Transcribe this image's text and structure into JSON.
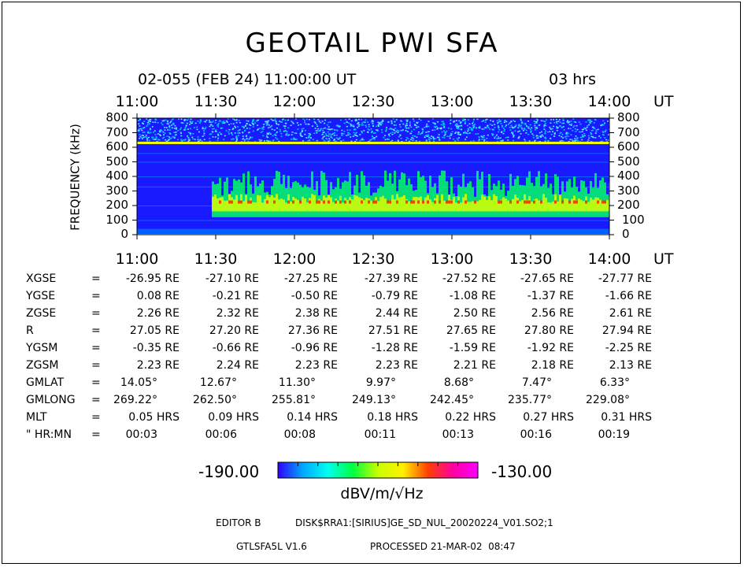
{
  "title": "GEOTAIL PWI SFA",
  "subtitle": "02-055 (FEB 24) 11:00:00 UT",
  "duration": "03 hrs",
  "chart_data": {
    "type": "heatmap",
    "x_tick_labels": [
      "11:00",
      "11:30",
      "12:00",
      "12:30",
      "13:00",
      "13:30",
      "14:00"
    ],
    "x_unit": "UT",
    "xlim": [
      "11:00",
      "14:00"
    ],
    "ylabel": "FREQUENCY (kHz)",
    "y_ticks": [
      0,
      100,
      200,
      300,
      400,
      500,
      600,
      700,
      800
    ],
    "ylim": [
      0,
      800
    ],
    "colorbar": {
      "min": "-190.00",
      "max": "-130.00",
      "unit": "dBV/m/√Hz",
      "colors": [
        "#3000ff",
        "#00a8ff",
        "#00ffee",
        "#00ff40",
        "#c8ff00",
        "#fff000",
        "#ff4000",
        "#ff00a0",
        "#ff00ff"
      ]
    },
    "features": [
      {
        "name": "narrowband line",
        "frequency_khz": 630,
        "time": "11:00-14:00"
      },
      {
        "name": "broadband emission",
        "frequency_khz_range": [
          120,
          450
        ],
        "time": "11:30-14:00",
        "peak_frequency_khz": 220
      }
    ]
  },
  "orbit_table": {
    "rows": [
      {
        "label": "XGSE",
        "eq": "=",
        "values": [
          "-26.95 RE",
          "-27.10 RE",
          "-27.25 RE",
          "-27.39 RE",
          "-27.52 RE",
          "-27.65 RE",
          "-27.77 RE"
        ]
      },
      {
        "label": "YGSE",
        "eq": "=",
        "values": [
          "0.08 RE",
          "-0.21 RE",
          "-0.50 RE",
          "-0.79 RE",
          "-1.08 RE",
          "-1.37 RE",
          "-1.66 RE"
        ]
      },
      {
        "label": "ZGSE",
        "eq": "=",
        "values": [
          "2.26 RE",
          "2.32 RE",
          "2.38 RE",
          "2.44 RE",
          "2.50 RE",
          "2.56 RE",
          "2.61 RE"
        ]
      },
      {
        "label": "R",
        "eq": "=",
        "values": [
          "27.05 RE",
          "27.20 RE",
          "27.36 RE",
          "27.51 RE",
          "27.65 RE",
          "27.80 RE",
          "27.94 RE"
        ]
      },
      {
        "label": "YGSM",
        "eq": "=",
        "values": [
          "-0.35 RE",
          "-0.66 RE",
          "-0.96 RE",
          "-1.28 RE",
          "-1.59 RE",
          "-1.92 RE",
          "-2.25 RE"
        ]
      },
      {
        "label": "ZGSM",
        "eq": "=",
        "values": [
          "2.23 RE",
          "2.24 RE",
          "2.23 RE",
          "2.23 RE",
          "2.21 RE",
          "2.18 RE",
          "2.13 RE"
        ]
      },
      {
        "label": "GMLAT",
        "eq": "=",
        "values": [
          "14.05°",
          "12.67°",
          "11.30°",
          "9.97°",
          "8.68°",
          "7.47°",
          "6.33°"
        ]
      },
      {
        "label": "GMLONG",
        "eq": "=",
        "values": [
          "269.22°",
          "262.50°",
          "255.81°",
          "249.13°",
          "242.45°",
          "235.77°",
          "229.08°"
        ]
      },
      {
        "label": "MLT",
        "eq": "=",
        "values": [
          "0.05 HRS",
          "0.09 HRS",
          "0.14 HRS",
          "0.18 HRS",
          "0.22 HRS",
          "0.27 HRS",
          "0.31 HRS"
        ]
      },
      {
        "label": "\" HR:MN",
        "eq": "=",
        "values": [
          "00:03",
          "00:06",
          "00:08",
          "00:11",
          "00:13",
          "00:16",
          "00:19"
        ]
      }
    ]
  },
  "footer": {
    "editor": "EDITOR B",
    "disk": "DISK$RRA1:[SIRIUS]GE_SD_NUL_20020224_V01.SO2;1",
    "version": "GTLSFA5L V1.6",
    "processed": "PROCESSED 21-MAR-02  08:47"
  }
}
